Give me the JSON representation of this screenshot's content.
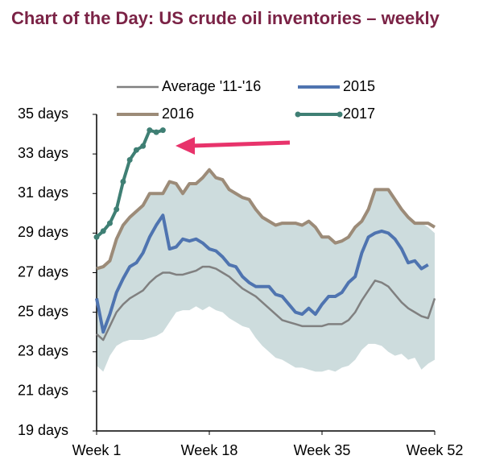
{
  "chart_data": {
    "type": "line",
    "title": "Chart of the Day: US crude oil inventories – weekly",
    "x": [
      1,
      2,
      3,
      4,
      5,
      6,
      7,
      8,
      9,
      10,
      11,
      12,
      13,
      14,
      15,
      16,
      17,
      18,
      19,
      20,
      21,
      22,
      23,
      24,
      25,
      26,
      27,
      28,
      29,
      30,
      31,
      32,
      33,
      34,
      35,
      36,
      37,
      38,
      39,
      40,
      41,
      42,
      43,
      44,
      45,
      46,
      47,
      48,
      49,
      50,
      51,
      52
    ],
    "xlim": [
      1,
      52
    ],
    "xticks": [
      {
        "value": 1,
        "label": "Week 1"
      },
      {
        "value": 18,
        "label": "Week 18"
      },
      {
        "value": 35,
        "label": "Week 35"
      },
      {
        "value": 52,
        "label": "Week 52"
      }
    ],
    "ylim": [
      19,
      35
    ],
    "yticks": [
      {
        "value": 19,
        "label": "19 days"
      },
      {
        "value": 21,
        "label": "21 days"
      },
      {
        "value": 23,
        "label": "23 days"
      },
      {
        "value": 25,
        "label": "25 days"
      },
      {
        "value": 27,
        "label": "27 days"
      },
      {
        "value": 29,
        "label": "29 days"
      },
      {
        "value": 31,
        "label": "31 days"
      },
      {
        "value": 33,
        "label": "33 days"
      },
      {
        "value": 35,
        "label": "35 days"
      }
    ],
    "legend": "top",
    "range": {
      "color": "#cddcdd",
      "low": [
        22.3,
        22.0,
        22.8,
        23.3,
        23.5,
        23.6,
        23.6,
        23.6,
        23.7,
        23.8,
        24.0,
        24.5,
        25.0,
        25.1,
        25.1,
        25.3,
        25.1,
        25.3,
        25.1,
        25.0,
        24.7,
        24.5,
        24.3,
        24.2,
        23.7,
        23.3,
        23.0,
        22.7,
        22.6,
        22.4,
        22.2,
        22.2,
        22.1,
        22.0,
        22.0,
        22.1,
        22.0,
        22.2,
        22.3,
        22.6,
        23.1,
        23.4,
        23.4,
        23.3,
        23.0,
        22.8,
        22.9,
        22.6,
        22.7,
        22.1,
        22.4,
        22.6
      ],
      "high": [
        27.3,
        27.4,
        27.7,
        28.7,
        29.4,
        29.8,
        30.1,
        30.4,
        31.0,
        31.0,
        31.0,
        31.6,
        31.5,
        31.0,
        31.5,
        31.5,
        31.8,
        32.2,
        31.8,
        31.7,
        31.2,
        31.0,
        30.8,
        30.7,
        30.2,
        29.8,
        29.6,
        29.4,
        29.5,
        29.5,
        29.5,
        29.4,
        29.6,
        29.3,
        28.8,
        28.8,
        28.5,
        28.6,
        28.8,
        29.3,
        29.6,
        30.2,
        31.2,
        31.2,
        31.2,
        30.7,
        30.2,
        29.8,
        29.5,
        29.5,
        29.3,
        29.0
      ]
    },
    "series": [
      {
        "name": "Average '11-'16",
        "color": "#808080",
        "values": [
          23.9,
          23.6,
          24.3,
          25.0,
          25.4,
          25.7,
          25.9,
          26.1,
          26.5,
          26.8,
          27.0,
          27.0,
          26.9,
          26.9,
          27.0,
          27.1,
          27.3,
          27.3,
          27.2,
          27.0,
          26.8,
          26.5,
          26.2,
          26.0,
          25.8,
          25.5,
          25.2,
          24.9,
          24.6,
          24.5,
          24.4,
          24.3,
          24.3,
          24.3,
          24.3,
          24.4,
          24.4,
          24.4,
          24.6,
          25.0,
          25.6,
          26.1,
          26.6,
          26.5,
          26.3,
          25.9,
          25.5,
          25.2,
          25.0,
          24.8,
          24.7,
          25.7
        ]
      },
      {
        "name": "2015",
        "color": "#4f74b0",
        "values": [
          25.7,
          24.0,
          24.9,
          26.0,
          26.7,
          27.3,
          27.5,
          28.0,
          28.8,
          29.4,
          29.9,
          28.2,
          28.3,
          28.7,
          28.6,
          28.7,
          28.5,
          28.2,
          28.1,
          27.8,
          27.4,
          27.3,
          26.8,
          26.5,
          26.3,
          26.3,
          26.3,
          25.9,
          25.8,
          25.4,
          25.0,
          24.9,
          25.2,
          24.9,
          25.4,
          25.8,
          25.8,
          26.0,
          26.5,
          26.8,
          28.0,
          28.8,
          29.0,
          29.1,
          29.0,
          28.7,
          28.2,
          27.5,
          27.6,
          27.2,
          27.4,
          null
        ]
      },
      {
        "name": "2016",
        "color": "#9c8b78",
        "values": [
          27.2,
          27.3,
          27.6,
          28.7,
          29.4,
          29.8,
          30.1,
          30.4,
          31.0,
          31.0,
          31.0,
          31.6,
          31.5,
          31.0,
          31.5,
          31.5,
          31.8,
          32.2,
          31.8,
          31.7,
          31.2,
          31.0,
          30.8,
          30.7,
          30.2,
          29.8,
          29.6,
          29.4,
          29.5,
          29.5,
          29.5,
          29.4,
          29.6,
          29.3,
          28.8,
          28.8,
          28.5,
          28.6,
          28.8,
          29.3,
          29.6,
          30.2,
          31.2,
          31.2,
          31.2,
          30.7,
          30.2,
          29.8,
          29.5,
          29.5,
          29.5,
          29.3
        ]
      },
      {
        "name": "2017",
        "color": "#3f7f74",
        "markers": true,
        "values": [
          28.8,
          29.1,
          29.5,
          30.2,
          31.6,
          32.7,
          33.2,
          33.4,
          34.2,
          34.1,
          34.2,
          null,
          null,
          null,
          null,
          null,
          null,
          null,
          null,
          null,
          null,
          null,
          null,
          null,
          null,
          null,
          null,
          null,
          null,
          null,
          null,
          null,
          null,
          null,
          null,
          null,
          null,
          null,
          null,
          null,
          null,
          null,
          null,
          null,
          null,
          null,
          null,
          null,
          null,
          null,
          null,
          null
        ]
      }
    ]
  }
}
